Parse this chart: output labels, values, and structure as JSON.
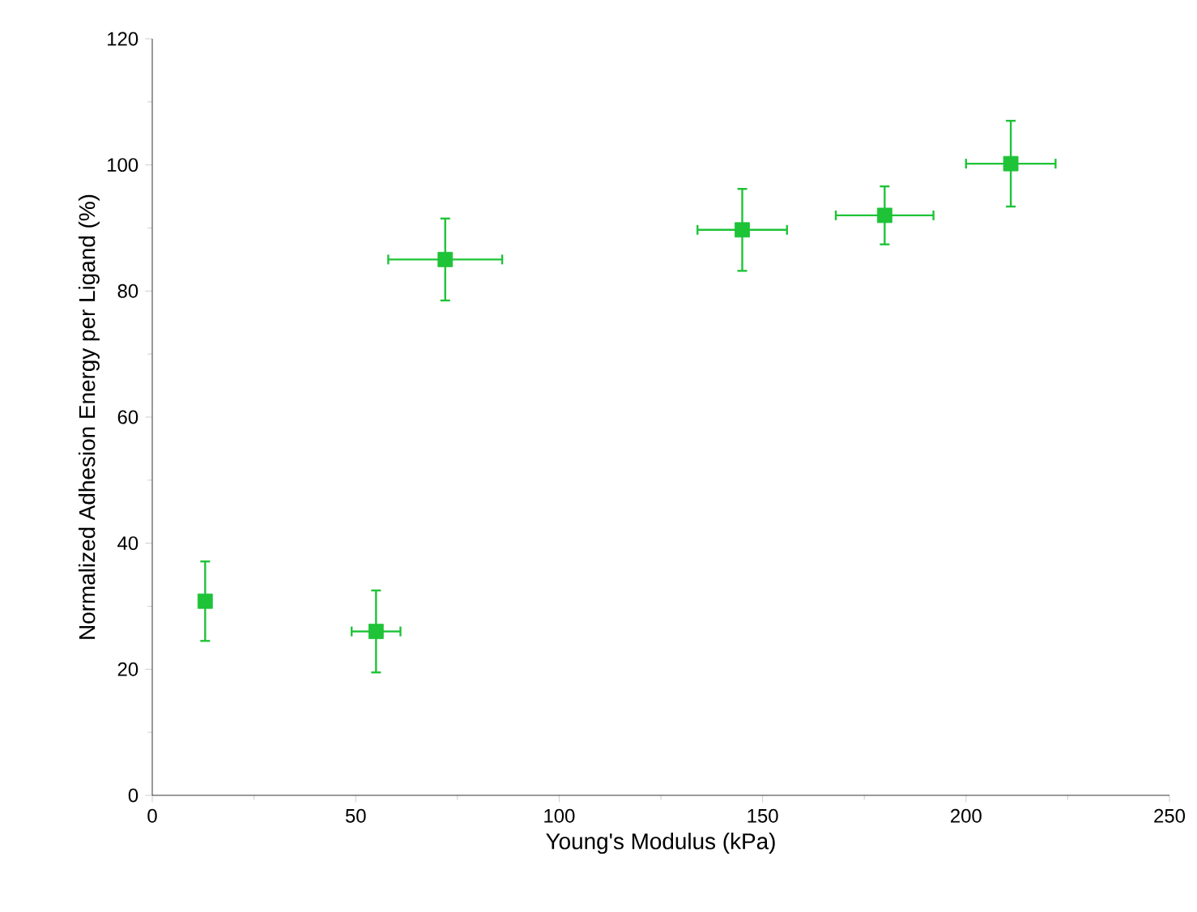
{
  "chart_data": {
    "type": "scatter",
    "xlabel": "Young's Modulus (kPa)",
    "ylabel": "Normalized Adhesion Energy per Ligand (%)",
    "x": [
      13,
      55,
      72,
      145,
      180,
      211
    ],
    "series": [
      {
        "color": "#1ec337",
        "values": [
          30.8,
          26,
          85,
          89.7,
          92,
          100.2
        ],
        "errors": [
          6.3,
          6.5,
          6.5,
          6.5,
          4.6,
          6.8
        ],
        "xerrors": [
          null,
          6,
          14,
          11,
          12,
          11
        ]
      }
    ],
    "marker": "square",
    "xlim": [
      0,
      250
    ],
    "xticks": [
      0,
      50,
      100,
      150,
      200,
      250
    ],
    "ylim": [
      0,
      120
    ],
    "yticks": [
      0,
      20,
      40,
      60,
      80,
      100,
      120
    ]
  }
}
